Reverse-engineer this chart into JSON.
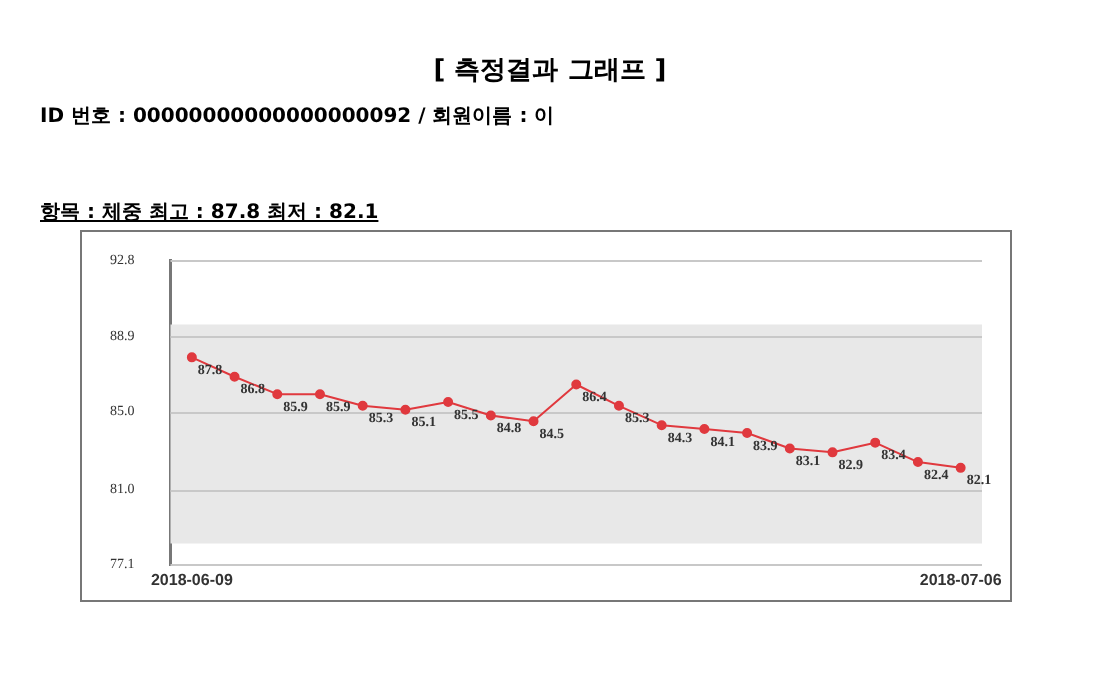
{
  "chart_data": {
    "type": "line",
    "title": "[ 측정결과 그래프 ]",
    "annotations": [
      "ID 번호 : 00000000000000000092 / 회원이름 : 이",
      "항목 : 체중 최고 : 87.8 최저 : 82.1"
    ],
    "categories": [
      "2018-06-09",
      null,
      null,
      null,
      null,
      null,
      null,
      null,
      null,
      null,
      null,
      null,
      null,
      null,
      null,
      null,
      null,
      null,
      "2018-07-06"
    ],
    "series": [
      {
        "color": "#e0393e",
        "values": [
          87.8,
          86.8,
          85.9,
          85.9,
          85.3,
          85.1,
          85.5,
          84.8,
          84.5,
          86.4,
          85.3,
          84.3,
          84.1,
          83.9,
          83.1,
          82.9,
          83.4,
          82.4,
          82.1
        ]
      }
    ],
    "ylim": [
      77.1,
      92.8
    ],
    "yticks": [
      77.1,
      {
        "value": 81,
        "label": "81.0"
      },
      {
        "value": 85,
        "label": "85.0"
      },
      88.9,
      92.8
    ],
    "bands": [
      {
        "axis": "y",
        "from": 78.2,
        "to": 89.5,
        "color": "#e8e8e8"
      }
    ],
    "grid": "y",
    "legend": false,
    "marker": "circle",
    "line_style": "solid",
    "data_labels": true
  }
}
